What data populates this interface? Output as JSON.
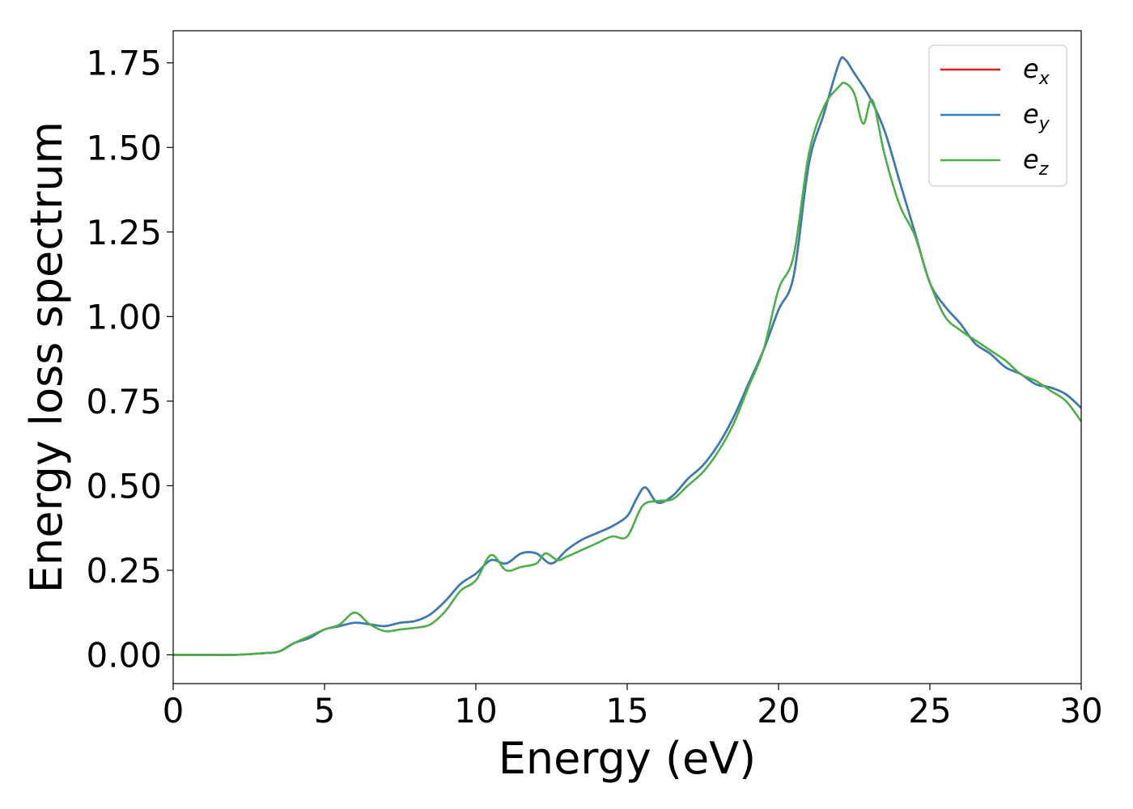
{
  "chart_data": {
    "type": "line",
    "title": "",
    "xlabel": "Energy (eV)",
    "ylabel": "Energy loss spectrum",
    "xlim": [
      0,
      30
    ],
    "ylim": [
      -0.085,
      1.845
    ],
    "xticks": [
      0,
      5,
      10,
      15,
      20,
      25,
      30
    ],
    "xtick_labels": [
      "0",
      "5",
      "10",
      "15",
      "20",
      "25",
      "30"
    ],
    "yticks": [
      0,
      0.25,
      0.5,
      0.75,
      1.0,
      1.25,
      1.5,
      1.75
    ],
    "ytick_labels": [
      "0.00",
      "0.25",
      "0.50",
      "0.75",
      "1.00",
      "1.25",
      "1.50",
      "1.75"
    ],
    "grid": false,
    "legend": "top-right",
    "series": [
      {
        "name": "e_x",
        "label_main": "e",
        "label_sub": "x",
        "color": "#e41a1c",
        "x": [
          0,
          1,
          2,
          3,
          3.5,
          4,
          4.5,
          5,
          5.5,
          6,
          6.5,
          7,
          7.5,
          8,
          8.5,
          9,
          9.5,
          10,
          10.5,
          11,
          11.5,
          12,
          12.5,
          13,
          13.5,
          14,
          14.5,
          15,
          15.3,
          15.6,
          16,
          16.5,
          17,
          17.5,
          18,
          18.5,
          19,
          19.5,
          20,
          20.5,
          21,
          21.5,
          22,
          22.2,
          22.5,
          23,
          23.5,
          24,
          24.5,
          25,
          25.5,
          26,
          26.5,
          27,
          27.5,
          28,
          28.5,
          29,
          29.5,
          30
        ],
        "y": [
          0,
          0,
          0,
          0.005,
          0.01,
          0.035,
          0.05,
          0.075,
          0.085,
          0.095,
          0.09,
          0.085,
          0.095,
          0.1,
          0.12,
          0.16,
          0.21,
          0.24,
          0.28,
          0.27,
          0.3,
          0.3,
          0.27,
          0.31,
          0.34,
          0.36,
          0.38,
          0.41,
          0.46,
          0.495,
          0.45,
          0.47,
          0.52,
          0.56,
          0.62,
          0.7,
          0.8,
          0.9,
          1.02,
          1.12,
          1.45,
          1.6,
          1.75,
          1.76,
          1.72,
          1.65,
          1.55,
          1.4,
          1.25,
          1.1,
          1.03,
          0.98,
          0.92,
          0.89,
          0.85,
          0.83,
          0.8,
          0.79,
          0.77,
          0.73
        ]
      },
      {
        "name": "e_y",
        "label_main": "e",
        "label_sub": "y",
        "color": "#377eb8",
        "x": [
          0,
          1,
          2,
          3,
          3.5,
          4,
          4.5,
          5,
          5.5,
          6,
          6.5,
          7,
          7.5,
          8,
          8.5,
          9,
          9.5,
          10,
          10.5,
          11,
          11.5,
          12,
          12.5,
          13,
          13.5,
          14,
          14.5,
          15,
          15.3,
          15.6,
          16,
          16.5,
          17,
          17.5,
          18,
          18.5,
          19,
          19.5,
          20,
          20.5,
          21,
          21.5,
          22,
          22.2,
          22.5,
          23,
          23.5,
          24,
          24.5,
          25,
          25.5,
          26,
          26.5,
          27,
          27.5,
          28,
          28.5,
          29,
          29.5,
          30
        ],
        "y": [
          0,
          0,
          0,
          0.005,
          0.01,
          0.035,
          0.05,
          0.075,
          0.085,
          0.095,
          0.09,
          0.085,
          0.095,
          0.1,
          0.12,
          0.16,
          0.21,
          0.24,
          0.28,
          0.27,
          0.3,
          0.3,
          0.27,
          0.31,
          0.34,
          0.36,
          0.38,
          0.41,
          0.46,
          0.495,
          0.45,
          0.47,
          0.52,
          0.56,
          0.62,
          0.7,
          0.8,
          0.9,
          1.02,
          1.12,
          1.45,
          1.6,
          1.75,
          1.76,
          1.72,
          1.65,
          1.55,
          1.4,
          1.25,
          1.1,
          1.03,
          0.98,
          0.92,
          0.89,
          0.85,
          0.83,
          0.8,
          0.79,
          0.77,
          0.73
        ]
      },
      {
        "name": "e_z",
        "label_main": "e",
        "label_sub": "z",
        "color": "#4daf4a",
        "x": [
          0,
          1,
          2,
          3,
          3.5,
          4,
          4.5,
          5,
          5.5,
          6,
          6.5,
          7,
          7.5,
          8,
          8.5,
          9,
          9.5,
          10,
          10.5,
          11,
          11.5,
          12,
          12.3,
          12.7,
          13,
          13.5,
          14,
          14.5,
          15,
          15.5,
          16,
          16.5,
          17,
          17.5,
          18,
          18.5,
          19,
          19.5,
          20,
          20.5,
          21,
          21.5,
          22,
          22.2,
          22.5,
          22.8,
          23.1,
          23.5,
          24,
          24.5,
          25,
          25.5,
          26,
          26.5,
          27,
          27.5,
          28,
          28.5,
          29,
          29.5,
          30
        ],
        "y": [
          0,
          0,
          0,
          0.005,
          0.01,
          0.035,
          0.055,
          0.075,
          0.09,
          0.125,
          0.09,
          0.07,
          0.075,
          0.08,
          0.09,
          0.13,
          0.19,
          0.22,
          0.295,
          0.25,
          0.26,
          0.27,
          0.3,
          0.28,
          0.29,
          0.31,
          0.33,
          0.35,
          0.35,
          0.44,
          0.455,
          0.46,
          0.5,
          0.54,
          0.6,
          0.68,
          0.79,
          0.9,
          1.08,
          1.18,
          1.48,
          1.62,
          1.68,
          1.69,
          1.66,
          1.57,
          1.64,
          1.48,
          1.33,
          1.24,
          1.1,
          1.0,
          0.96,
          0.93,
          0.9,
          0.87,
          0.83,
          0.81,
          0.78,
          0.75,
          0.69
        ]
      }
    ]
  }
}
